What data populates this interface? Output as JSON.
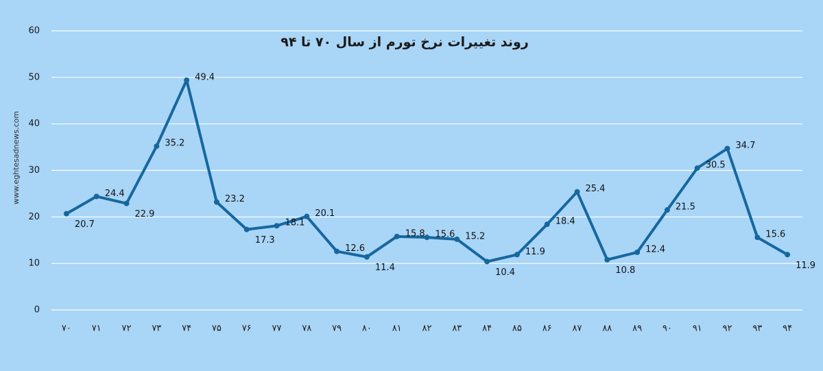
{
  "chart_data": {
    "type": "line",
    "title": "روند تغییرات نرخ تورم از سال ۷۰ تا ۹۴",
    "watermark": "www.eghtesadnews.com",
    "categories": [
      "۷۰",
      "۷۱",
      "۷۲",
      "۷۳",
      "۷۴",
      "۷۵",
      "۷۶",
      "۷۷",
      "۷۸",
      "۷۹",
      "۸۰",
      "۸۱",
      "۸۲",
      "۸۳",
      "۸۴",
      "۸۵",
      "۸۶",
      "۸۷",
      "۸۸",
      "۸۹",
      "۹۰",
      "۹۱",
      "۹۲",
      "۹۳",
      "۹۴"
    ],
    "series": [
      {
        "color": "#16679e",
        "values": [
          20.7,
          24.4,
          22.9,
          35.2,
          49.4,
          23.2,
          17.3,
          18.1,
          20.1,
          12.6,
          11.4,
          15.8,
          15.6,
          15.2,
          10.4,
          11.9,
          18.4,
          25.4,
          10.8,
          12.4,
          21.5,
          30.5,
          34.7,
          15.6,
          11.9
        ]
      }
    ],
    "ylim": [
      0,
      60
    ],
    "yticks": [
      0,
      10,
      20,
      30,
      40,
      50,
      60
    ],
    "grid": true
  }
}
